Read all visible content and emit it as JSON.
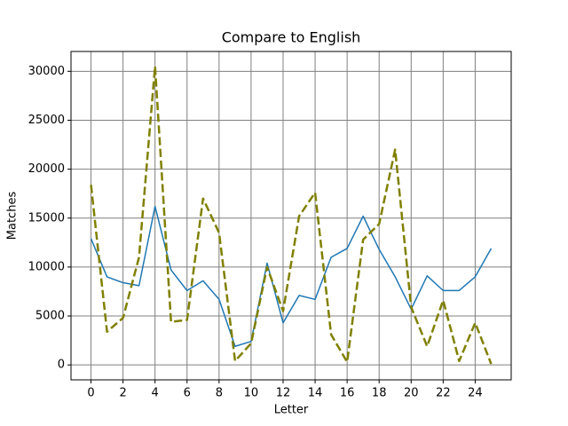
{
  "chart_data": {
    "type": "line",
    "title": "Compare to English",
    "x_label": "Letter",
    "y_label": "Matches",
    "x": [
      0,
      1,
      2,
      3,
      4,
      5,
      6,
      7,
      8,
      9,
      10,
      11,
      12,
      13,
      14,
      15,
      16,
      17,
      18,
      19,
      20,
      21,
      22,
      23,
      24,
      25
    ],
    "series": [
      {
        "color": "#1f77b4",
        "linestyle": "solid",
        "linewidth": 1.5,
        "values": [
          12900,
          9000,
          8400,
          8100,
          16200,
          9700,
          7600,
          8600,
          6700,
          1900,
          2400,
          10400,
          4300,
          7100,
          6700,
          11000,
          11900,
          15200,
          11800,
          9000,
          5700,
          9100,
          7600,
          7600,
          9000,
          11900
        ]
      },
      {
        "color": "#808000",
        "linestyle": "dashed",
        "linewidth": 2.5,
        "values": [
          18400,
          3400,
          4800,
          11000,
          30500,
          4400,
          4600,
          17000,
          13500,
          400,
          2200,
          10000,
          5500,
          15200,
          17600,
          3100,
          300,
          12800,
          14400,
          22000,
          5900,
          1900,
          6600,
          400,
          4300,
          100
        ]
      }
    ],
    "xlim": [
      -1.25,
      26.25
    ],
    "ylim": [
      -1525,
      32025
    ],
    "xticks": [
      0,
      2,
      4,
      6,
      8,
      10,
      12,
      14,
      16,
      18,
      20,
      22,
      24
    ],
    "yticks": [
      0,
      5000,
      10000,
      15000,
      20000,
      25000,
      30000
    ],
    "grid": true,
    "grid_color": "#808080"
  }
}
